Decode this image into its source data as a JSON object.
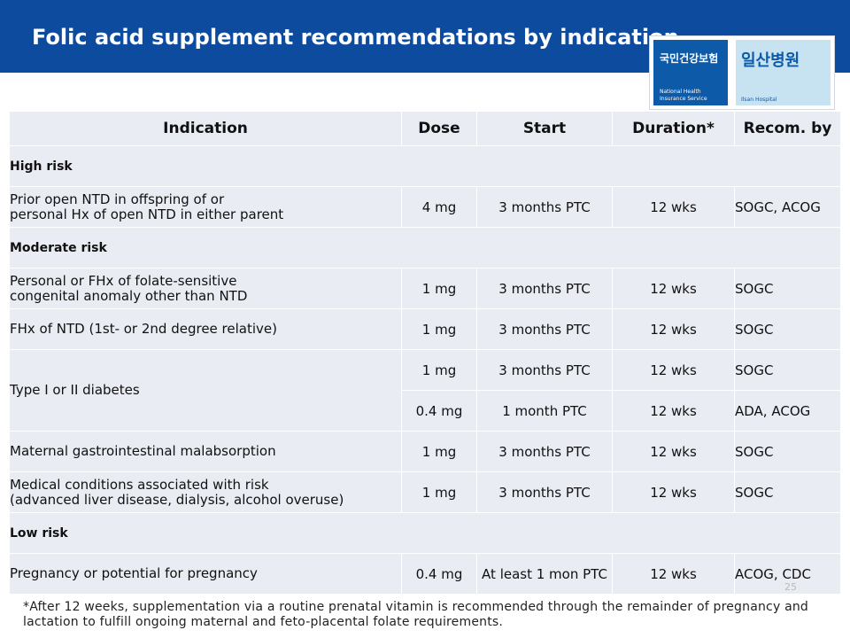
{
  "slide": {
    "title": "Folic acid supplement recommendations by indication",
    "page_number": "25",
    "footnote": "*After 12 weeks, supplementation via a routine prenatal vitamin is recommended through the remainder of pregnancy and lactation to fulfill ongoing maternal and feto-placental folate requirements."
  },
  "logo": {
    "left_korean": "국민건강보험",
    "left_english_1": "National Health",
    "left_english_2": "Insurance Service",
    "right_korean": "일산병원",
    "right_english": "Ilsan Hospital",
    "left_color": "#0d5aa9",
    "right_color": "#c7e3f1"
  },
  "colors": {
    "title_band": "#0c4b9e",
    "table_fill": "#e9ecf3"
  },
  "table": {
    "headers": {
      "indication": "Indication",
      "dose": "Dose",
      "start": "Start",
      "duration": "Duration*",
      "recom": "Recom. by"
    },
    "groups": {
      "high": "High risk",
      "moderate": "Moderate risk",
      "low": "Low risk"
    },
    "rows": [
      {
        "indication_line1": "Prior open NTD in offspring of or",
        "indication_line2": "personal Hx of open NTD in either parent",
        "dose": "4 mg",
        "start": "3 months PTC",
        "duration": "12 wks",
        "recom": "SOGC, ACOG"
      },
      {
        "indication_line1": "Personal or FHx of folate-sensitive",
        "indication_line2": "congenital anomaly other than NTD",
        "dose": "1 mg",
        "start": "3 months PTC",
        "duration": "12 wks",
        "recom": "SOGC"
      },
      {
        "indication": "FHx of NTD (1st- or 2nd degree relative)",
        "dose": "1 mg",
        "start": "3 months PTC",
        "duration": "12 wks",
        "recom": "SOGC"
      },
      {
        "indication": "Type I or II diabetes",
        "dose": "1 mg",
        "start": "3 months PTC",
        "duration": "12 wks",
        "recom": "SOGC"
      },
      {
        "dose": "0.4 mg",
        "start": "1  month PTC",
        "duration": "12 wks",
        "recom": "ADA, ACOG"
      },
      {
        "indication": "Maternal gastrointestinal malabsorption",
        "dose": "1 mg",
        "start": "3 months PTC",
        "duration": "12 wks",
        "recom": "SOGC"
      },
      {
        "indication_line1": "Medical conditions associated with risk",
        "indication_line2": "(advanced liver disease, dialysis, alcohol overuse)",
        "dose": "1 mg",
        "start": "3 months PTC",
        "duration": "12 wks",
        "recom": "SOGC"
      },
      {
        "indication": "Pregnancy or potential for pregnancy",
        "dose": "0.4 mg",
        "start": "At least 1 mon PTC",
        "duration": "12 wks",
        "recom": "ACOG, CDC"
      }
    ]
  }
}
